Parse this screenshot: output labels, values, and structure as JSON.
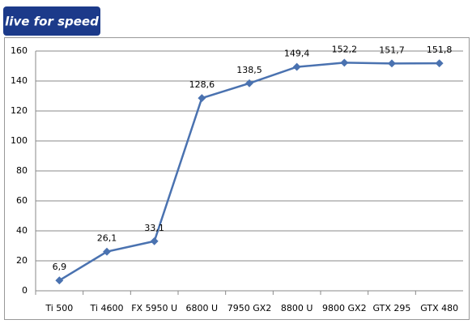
{
  "chart_data": {
    "type": "line",
    "logo": "live for speed",
    "categories": [
      "Ti 500",
      "Ti 4600",
      "FX 5950 U",
      "6800 U",
      "7950 GX2",
      "8800 U",
      "9800 GX2",
      "GTX 295",
      "GTX 480"
    ],
    "series": [
      {
        "color": "#4a72b0",
        "values": [
          6.9,
          26.1,
          33.1,
          128.6,
          138.5,
          149.4,
          152.2,
          151.7,
          151.8
        ],
        "value_labels": [
          "6,9",
          "26,1",
          "33,1",
          "128,6",
          "138,5",
          "149,4",
          "152,2",
          "151,7",
          "151,8"
        ]
      }
    ],
    "ylim": [
      0,
      160
    ],
    "yticks": [
      0,
      20,
      40,
      60,
      80,
      100,
      120,
      140,
      160
    ],
    "grid": true
  }
}
